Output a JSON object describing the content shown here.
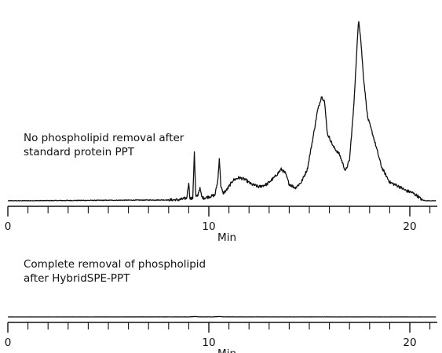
{
  "chart_data": [
    {
      "type": "line",
      "annotation": [
        "No phospholipid removal after",
        "standard protein PPT"
      ],
      "xlabel": "Min",
      "ylabel": "",
      "xlim": [
        0,
        21.3
      ],
      "ylim": [
        0,
        100
      ],
      "xticks": [
        0,
        10,
        20
      ],
      "grid": false,
      "x": [
        0,
        8.5,
        8.9,
        9.0,
        9.05,
        9.1,
        9.2,
        9.28,
        9.35,
        9.45,
        9.55,
        9.65,
        9.75,
        10.3,
        10.45,
        10.52,
        10.6,
        10.7,
        10.9,
        11.2,
        11.5,
        11.8,
        12.1,
        12.5,
        12.9,
        13.3,
        13.6,
        13.8,
        14.0,
        14.3,
        14.6,
        14.9,
        15.2,
        15.4,
        15.6,
        15.75,
        15.9,
        16.0,
        16.2,
        16.5,
        16.8,
        17.0,
        17.2,
        17.35,
        17.45,
        17.55,
        17.7,
        17.9,
        18.2,
        18.6,
        19.0,
        19.2,
        19.5,
        19.8,
        20.1,
        20.4,
        20.6,
        20.8,
        21.3
      ],
      "series": [
        {
          "values": [
            0,
            0.5,
            1.5,
            10,
            2,
            1,
            1.5,
            26,
            2,
            3,
            7,
            2,
            1.5,
            3,
            11,
            23,
            8,
            4,
            6,
            11,
            12.5,
            11.5,
            9,
            7.5,
            9,
            13,
            17,
            15,
            9,
            7,
            10,
            17,
            35,
            48,
            56,
            54,
            36,
            34,
            29,
            25,
            16,
            22,
            49,
            78,
            98,
            88,
            66,
            45,
            34,
            18,
            10,
            9,
            7.5,
            5.5,
            4.5,
            2.5,
            0.5,
            0,
            0
          ]
        }
      ]
    },
    {
      "type": "line",
      "annotation": [
        "Complete removal of phospholipid",
        "after HybridSPE-PPT"
      ],
      "xlabel": "Min",
      "ylabel": "",
      "xlim": [
        0,
        21.3
      ],
      "ylim": [
        0,
        100
      ],
      "xticks": [
        0,
        10,
        20
      ],
      "grid": false,
      "x": [
        0,
        9.0,
        9.2,
        9.35,
        9.5,
        10.2,
        10.45,
        10.55,
        10.7,
        11.5,
        21.3
      ],
      "series": [
        {
          "values": [
            0,
            0.3,
            1.5,
            2.5,
            0.5,
            0.4,
            1.5,
            2.5,
            0.5,
            0.3,
            0
          ]
        }
      ]
    }
  ]
}
